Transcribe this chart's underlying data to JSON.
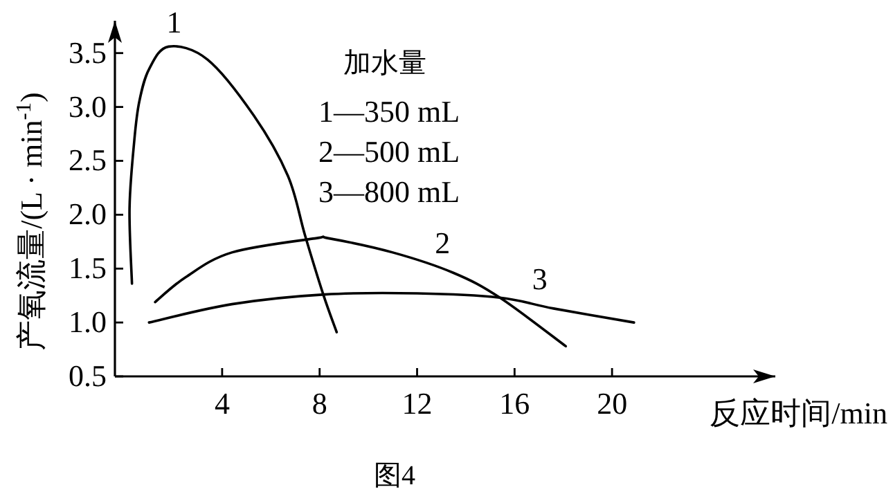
{
  "chart_data": {
    "type": "line",
    "ylabel": "产氧流量/(L · min$^{-1}$)",
    "xlabel": "反应时间/min",
    "legend_title": "加水量",
    "annotations": [
      "1—350 mL",
      "2—500 mL",
      "3—800 mL",
      "图4"
    ],
    "xlim": [
      -0.4,
      26.7
    ],
    "ylim": [
      0.5,
      3.8
    ],
    "xticks": [
      4,
      8,
      12,
      16,
      20
    ],
    "yticks": [
      {
        "value": 0.5,
        "label": "0.5"
      },
      {
        "value": 1,
        "label": "1.0"
      },
      {
        "value": 1.5,
        "label": "1.5"
      },
      {
        "value": 2,
        "label": "2.0"
      },
      {
        "value": 2.5,
        "label": "2.5"
      },
      {
        "value": 3,
        "label": "3.0"
      },
      {
        "value": 3.5,
        "label": "3.5"
      }
    ],
    "grid": false,
    "legend": "top",
    "marker": "none",
    "line_style": "solid",
    "series": [
      {
        "name": "1",
        "color": "#000000",
        "x": [
          0.3,
          0.2,
          0.4,
          0.6,
          1.0,
          1.8,
          3.4,
          5.3,
          6.7,
          7.4,
          8.15,
          8.7
        ],
        "values": [
          1.36,
          2.06,
          2.7,
          3.05,
          3.35,
          3.56,
          3.44,
          2.92,
          2.36,
          1.81,
          1.26,
          0.91
        ]
      },
      {
        "name": "2",
        "color": "#000000",
        "x": [
          1.25,
          2.5,
          4.4,
          7.8,
          8.4,
          11,
          13.5,
          15.4,
          18.1
        ],
        "values": [
          1.19,
          1.42,
          1.65,
          1.78,
          1.78,
          1.65,
          1.46,
          1.23,
          0.78
        ]
      },
      {
        "name": "3",
        "color": "#000000",
        "x": [
          1.0,
          4.4,
          8.2,
          12,
          15.4,
          17.6,
          20.9
        ],
        "values": [
          1.0,
          1.17,
          1.26,
          1.27,
          1.23,
          1.13,
          1.0
        ]
      }
    ]
  }
}
